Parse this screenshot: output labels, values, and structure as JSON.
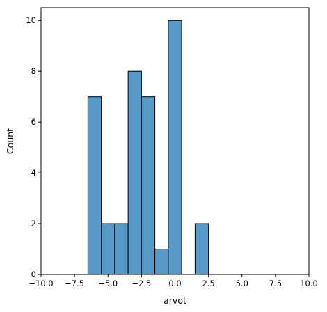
{
  "chart_data": {
    "type": "bar",
    "title": "",
    "xlabel": "arvot",
    "ylabel": "Count",
    "xlim": [
      -10,
      10
    ],
    "ylim": [
      0,
      10.5
    ],
    "grid": false,
    "bin_width": 1.0,
    "bins": [
      {
        "x0": -6.5,
        "x1": -5.5,
        "count": 7
      },
      {
        "x0": -5.5,
        "x1": -4.5,
        "count": 2
      },
      {
        "x0": -4.5,
        "x1": -3.5,
        "count": 2
      },
      {
        "x0": -3.5,
        "x1": -2.5,
        "count": 8
      },
      {
        "x0": -2.5,
        "x1": -1.5,
        "count": 7
      },
      {
        "x0": -1.5,
        "x1": -0.5,
        "count": 1
      },
      {
        "x0": -0.5,
        "x1": 0.5,
        "count": 10
      },
      {
        "x0": 0.5,
        "x1": 1.5,
        "count": 0
      },
      {
        "x0": 1.5,
        "x1": 2.5,
        "count": 2
      }
    ],
    "x_ticks": [
      {
        "value": -10,
        "label": "−10.0"
      },
      {
        "value": -7.5,
        "label": "−7.5"
      },
      {
        "value": -5,
        "label": "−5.0"
      },
      {
        "value": -2.5,
        "label": "−2.5"
      },
      {
        "value": 0,
        "label": "0.0"
      },
      {
        "value": 2.5,
        "label": "2.5"
      },
      {
        "value": 5,
        "label": "5.0"
      },
      {
        "value": 7.5,
        "label": "7.5"
      },
      {
        "value": 10,
        "label": "10.0"
      }
    ],
    "y_ticks": [
      {
        "value": 0,
        "label": "0"
      },
      {
        "value": 2,
        "label": "2"
      },
      {
        "value": 4,
        "label": "4"
      },
      {
        "value": 6,
        "label": "6"
      },
      {
        "value": 8,
        "label": "8"
      },
      {
        "value": 10,
        "label": "10"
      }
    ],
    "colors": {
      "bar_fill": "#5799c7",
      "bar_edge": "#000000",
      "axis": "#000000"
    }
  }
}
